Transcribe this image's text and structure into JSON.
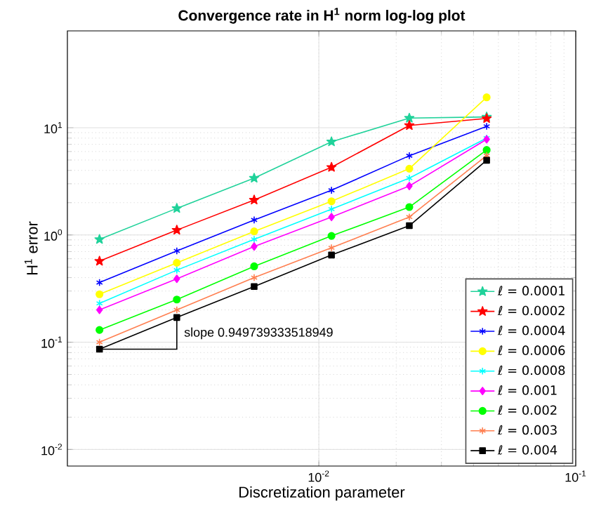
{
  "chart_data": {
    "type": "line",
    "title": "Convergence rate in H$^{1}$ norm log-log plot",
    "xlabel": "Discretization parameter",
    "ylabel": "H$^{1}$ error",
    "x": [
      0.0014,
      0.0028,
      0.0056,
      0.0112,
      0.0225,
      0.045
    ],
    "series": [
      {
        "name": "ℓ = 0.0001",
        "color": "#20d29a",
        "marker": "star",
        "values": [
          0.91,
          1.77,
          3.39,
          7.4,
          12.3,
          12.6
        ]
      },
      {
        "name": "ℓ = 0.0002",
        "color": "#ff0000",
        "marker": "star",
        "values": [
          0.57,
          1.11,
          2.12,
          4.28,
          10.5,
          12.2
        ]
      },
      {
        "name": "ℓ = 0.0004",
        "color": "#0000ff",
        "marker": "cross",
        "values": [
          0.36,
          0.71,
          1.38,
          2.61,
          5.48,
          10.3
        ]
      },
      {
        "name": "ℓ = 0.0006",
        "color": "#ffff00",
        "marker": "circle",
        "values": [
          0.28,
          0.55,
          1.08,
          2.06,
          4.15,
          19.2
        ]
      },
      {
        "name": "ℓ = 0.0008",
        "color": "#00ffff",
        "marker": "cross",
        "values": [
          0.23,
          0.47,
          0.91,
          1.74,
          3.39,
          8.0
        ]
      },
      {
        "name": "ℓ = 0.001",
        "color": "#ff00ff",
        "marker": "diamond",
        "values": [
          0.2,
          0.39,
          0.78,
          1.47,
          2.86,
          7.8
        ]
      },
      {
        "name": "ℓ = 0.002",
        "color": "#00ff00",
        "marker": "circle",
        "values": [
          0.13,
          0.25,
          0.51,
          0.98,
          1.82,
          6.2
        ]
      },
      {
        "name": "ℓ = 0.003",
        "color": "#ff7f50",
        "marker": "cross",
        "values": [
          0.1,
          0.2,
          0.4,
          0.76,
          1.47,
          5.5
        ]
      },
      {
        "name": "ℓ = 0.004",
        "color": "#000000",
        "marker": "square",
        "values": [
          0.086,
          0.17,
          0.33,
          0.65,
          1.22,
          4.97
        ]
      }
    ],
    "annotations": [
      {
        "text": "slope 0.949739333518949",
        "x": 0.0028,
        "y": 0.17
      }
    ],
    "log": "xy",
    "grid": true,
    "legend": "bottom right",
    "xlim": [
      0.00105,
      0.1
    ],
    "ylim": [
      0.007,
      80
    ],
    "xticks": [
      {
        "value": 0.01,
        "label": "10$^{-2}$"
      },
      {
        "value": 0.1,
        "label": "10$^{-1}$"
      }
    ],
    "yticks": [
      {
        "value": 0.01,
        "label": "10$^{-2}$"
      },
      {
        "value": 0.1,
        "label": "10$^{-1}$"
      },
      {
        "value": 1,
        "label": "10$^{0}$"
      },
      {
        "value": 10,
        "label": "10$^{1}$"
      }
    ]
  }
}
